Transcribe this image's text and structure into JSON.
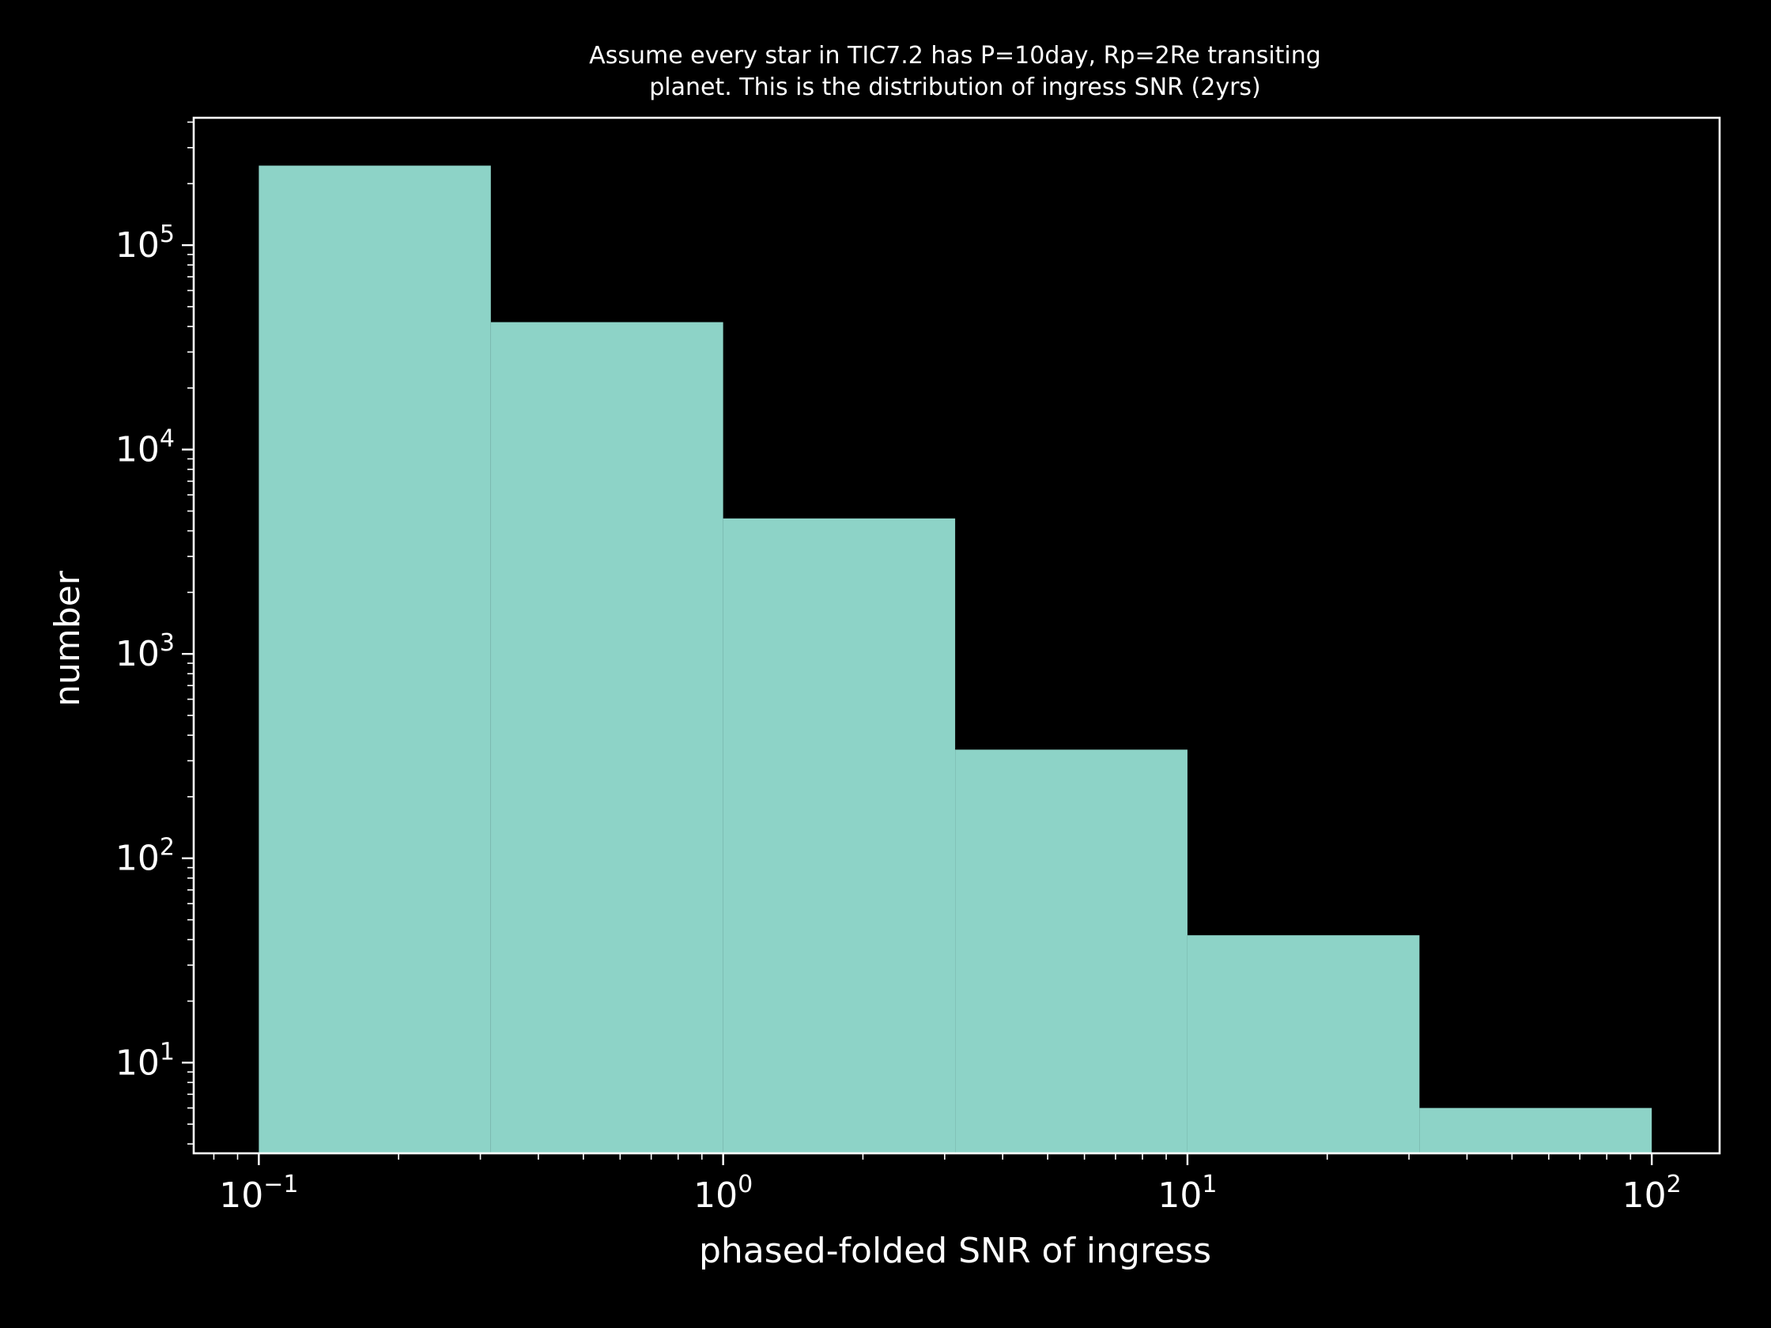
{
  "chart_data": {
    "type": "bar",
    "title_lines": [
      "Assume every star in TIC7.2 has P=10day, Rp=2Re transiting",
      "planet. This is the distribution of ingress SNR (2yrs)"
    ],
    "xlabel": "phased-folded SNR of ingress",
    "ylabel": "number",
    "xscale": "log",
    "yscale": "log",
    "xlim": [
      0.0724,
      140
    ],
    "ylim": [
      3.6,
      420000
    ],
    "xticks": [
      {
        "value": 0.1,
        "base": "10",
        "exp": "−1"
      },
      {
        "value": 1,
        "base": "10",
        "exp": "0"
      },
      {
        "value": 10,
        "base": "10",
        "exp": "1"
      },
      {
        "value": 100,
        "base": "10",
        "exp": "2"
      }
    ],
    "yticks": [
      {
        "value": 10,
        "base": "10",
        "exp": "1"
      },
      {
        "value": 100,
        "base": "10",
        "exp": "2"
      },
      {
        "value": 1000,
        "base": "10",
        "exp": "3"
      },
      {
        "value": 10000,
        "base": "10",
        "exp": "4"
      },
      {
        "value": 100000,
        "base": "10",
        "exp": "5"
      }
    ],
    "bins": [
      {
        "from": 0.1,
        "to": 0.316,
        "value": 245000
      },
      {
        "from": 0.316,
        "to": 1.0,
        "value": 42000
      },
      {
        "from": 1.0,
        "to": 3.16,
        "value": 4600
      },
      {
        "from": 3.16,
        "to": 10.0,
        "value": 340
      },
      {
        "from": 10.0,
        "to": 31.6,
        "value": 42
      },
      {
        "from": 31.6,
        "to": 100.0,
        "value": 6
      }
    ],
    "grid": false,
    "legend": "none",
    "colors": {
      "background": "#000000",
      "bar": "#8dd3c7",
      "axes": "#ffffff",
      "text": "#ffffff"
    }
  }
}
